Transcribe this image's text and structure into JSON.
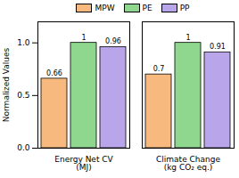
{
  "chart_data": {
    "type": "bar",
    "categories": [
      "Energy Net CV\n(MJ)",
      "Climate Change\n(kg CO₂ eq.)"
    ],
    "series": [
      {
        "name": "MPW",
        "color": "#f7b97e",
        "values": [
          0.66,
          0.7
        ]
      },
      {
        "name": "PE",
        "color": "#8fd68f",
        "values": [
          1,
          1
        ]
      },
      {
        "name": "PP",
        "color": "#b9a6ea",
        "values": [
          0.96,
          0.91
        ]
      }
    ],
    "y_label": "Normalized Values",
    "ylim": [
      0,
      1.2
    ],
    "yticks": [
      {
        "value": 0,
        "label": "0.0"
      },
      {
        "value": 0.5,
        "label": "0.5"
      },
      {
        "value": 1,
        "label": "1.0"
      }
    ],
    "grid": false,
    "legend": "top",
    "data_labels": true
  }
}
